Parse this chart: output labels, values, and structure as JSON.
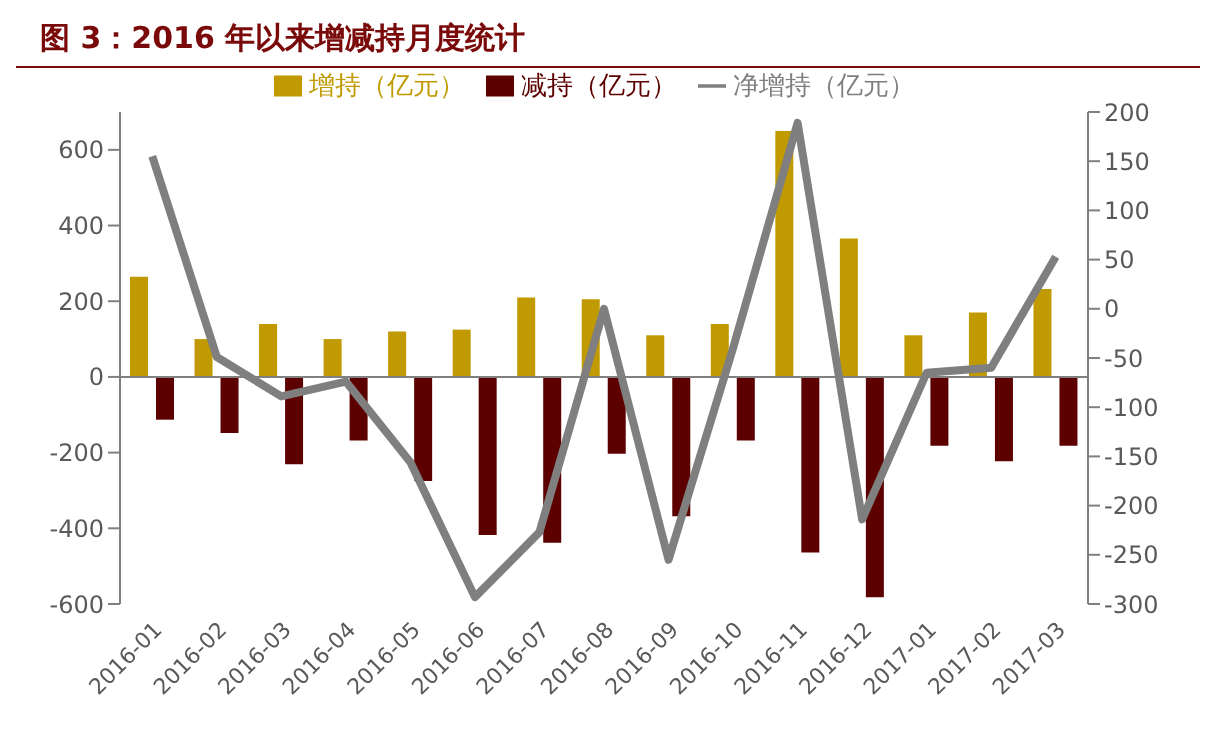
{
  "chart_data": {
    "type": "bar",
    "title": "图 3：2016 年以来增减持月度统计",
    "categories": [
      "2016-01",
      "2016-02",
      "2016-03",
      "2016-04",
      "2016-05",
      "2016-06",
      "2016-07",
      "2016-08",
      "2016-09",
      "2016-10",
      "2016-11",
      "2016-12",
      "2017-01",
      "2017-02",
      "2017-03"
    ],
    "series": [
      {
        "name": "增持（亿元）",
        "color": "#c09a00",
        "values": [
          265,
          100,
          140,
          100,
          120,
          125,
          210,
          205,
          110,
          140,
          650,
          366,
          110,
          170,
          232
        ]
      },
      {
        "name": "减持（亿元）",
        "color": "#5c0000",
        "values": [
          -113,
          -148,
          -231,
          -168,
          -275,
          -418,
          -438,
          -203,
          -368,
          -168,
          -464,
          -582,
          -182,
          -223,
          -182
        ]
      },
      {
        "name": "净增持（亿元）",
        "type": "line",
        "axis": "y2",
        "color": "#7f7f7f",
        "values": [
          155,
          -49,
          -89,
          -74,
          -156,
          -293,
          -227,
          0,
          -255,
          -40,
          189,
          -214,
          -65,
          -60,
          53
        ]
      }
    ],
    "ylim": [
      -600,
      700
    ],
    "yticks": [
      -600,
      -400,
      -200,
      0,
      200,
      400,
      600
    ],
    "y2lim": [
      -300,
      200
    ],
    "y2ticks": [
      -300,
      -250,
      -200,
      -150,
      -100,
      -50,
      0,
      50,
      100,
      150,
      200
    ],
    "legend": "top",
    "marker": "none",
    "line_style": "solid"
  }
}
